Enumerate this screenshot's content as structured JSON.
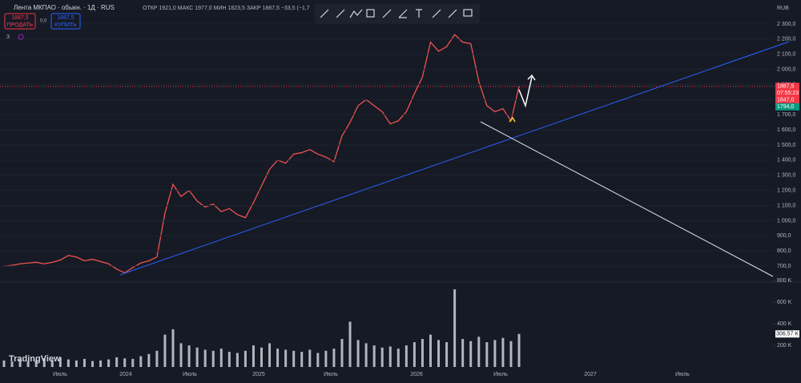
{
  "header": {
    "symbol": "Лента МКПАО · обыкн. · 1Д · RUS",
    "ohlc": "ОТКР 1921,0  МАКС 1977,0  МИН 1823,5  ЗАКР 1887,5  −33,5 (−1,7",
    "sell_price": "1887,5",
    "sell": "ПРОДАТЬ",
    "spread": "0,0",
    "buy_price": "1887,5",
    "buy": "КУПИТЬ",
    "indicators": "3",
    "currency": "RUB",
    "logo": "TradingView"
  },
  "price_labels": [
    "1887,5",
    "07:55:23",
    "1847,0",
    "1794,0"
  ],
  "volume_label": "306,57 K",
  "chart_data": {
    "type": "line",
    "x_labels": [
      "Июль",
      "2024",
      "Июль",
      "2025",
      "Июль",
      "2026",
      "Июль",
      "2027",
      "Июль"
    ],
    "series": [
      {
        "name": "Лента МКПАО",
        "color": "#ef5350",
        "values": [
          700,
          705,
          715,
          720,
          725,
          715,
          725,
          740,
          770,
          760,
          735,
          745,
          730,
          715,
          680,
          655,
          690,
          720,
          735,
          760,
          1050,
          1240,
          1160,
          1200,
          1130,
          1090,
          1110,
          1060,
          1080,
          1040,
          1020,
          1120,
          1230,
          1340,
          1400,
          1380,
          1440,
          1450,
          1470,
          1440,
          1420,
          1390,
          1560,
          1650,
          1760,
          1800,
          1760,
          1720,
          1640,
          1660,
          1720,
          1840,
          1950,
          2180,
          2120,
          2150,
          2230,
          2180,
          2170,
          1920,
          1760,
          1720,
          1740,
          1660,
          1887.5
        ]
      }
    ],
    "volume": {
      "color": "#b2b5be",
      "values": [
        60000,
        50000,
        70000,
        55000,
        60000,
        80000,
        65000,
        90000,
        70000,
        60000,
        75000,
        55000,
        60000,
        70000,
        90000,
        80000,
        75000,
        100000,
        120000,
        150000,
        300000,
        350000,
        220000,
        200000,
        180000,
        160000,
        150000,
        170000,
        140000,
        130000,
        150000,
        200000,
        180000,
        220000,
        170000,
        160000,
        150000,
        140000,
        160000,
        130000,
        150000,
        170000,
        260000,
        420000,
        250000,
        220000,
        200000,
        180000,
        190000,
        170000,
        200000,
        230000,
        260000,
        300000,
        250000,
        230000,
        720000,
        260000,
        240000,
        280000,
        230000,
        250000,
        270000,
        240000,
        306570
      ]
    },
    "ylim": [
      605,
      2342
    ],
    "yticks": [
      {
        "value": 700,
        "label": "700,0"
      },
      {
        "value": 800,
        "label": "800,0"
      },
      {
        "value": 900,
        "label": "900,0"
      },
      {
        "value": 1000,
        "label": "1 000,0"
      },
      {
        "value": 1100,
        "label": "1 100,0"
      },
      {
        "value": 1200,
        "label": "1 200,0"
      },
      {
        "value": 1300,
        "label": "1 300,0"
      },
      {
        "value": 1400,
        "label": "1 400,0"
      },
      {
        "value": 1500,
        "label": "1 500,0"
      },
      {
        "value": 1600,
        "label": "1 600,0"
      },
      {
        "value": 1700,
        "label": "1 700,0"
      },
      {
        "value": 1800,
        "label": "1 800,0"
      },
      {
        "value": 1900,
        "label": "1 900,0"
      },
      {
        "value": 2000,
        "label": "2 000,0"
      },
      {
        "value": 2100,
        "label": "2 100,0"
      },
      {
        "value": 2200,
        "label": "2 200,0"
      },
      {
        "value": 2300,
        "label": "2 300,0"
      }
    ],
    "y2lim": [
      0,
      840000
    ],
    "y2ticks": [
      {
        "value": 200000,
        "label": "200 K"
      },
      {
        "value": 400000,
        "label": "400 K"
      },
      {
        "value": 600000,
        "label": "600 K"
      },
      {
        "value": 800000,
        "label": "800 K"
      }
    ]
  }
}
